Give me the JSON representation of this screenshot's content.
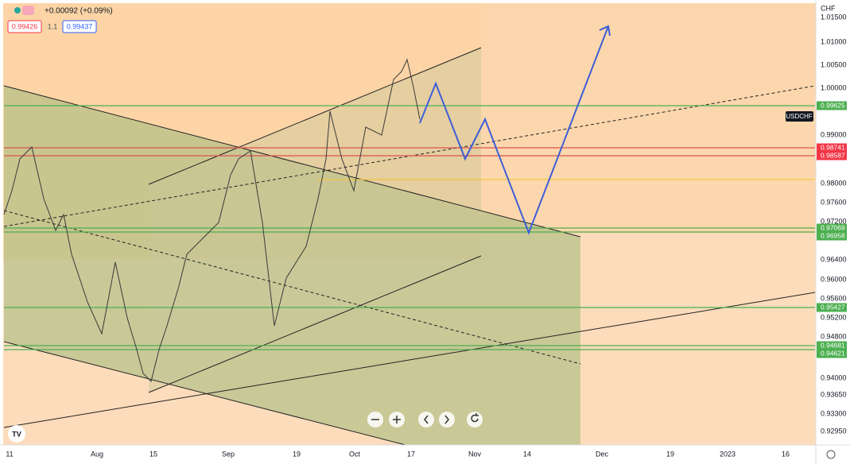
{
  "header": {
    "change": "+0.00092 (+0.09%)",
    "bid": "0.99426",
    "spread": "1.1",
    "ask": "0.99437"
  },
  "price_axis": {
    "currency": "CHF",
    "ticks": [
      "1.01500",
      "1.01000",
      "1.00500",
      "1.00000",
      "0.99000",
      "0.98000",
      "0.97600",
      "0.97200",
      "0.96400",
      "0.96000",
      "0.95600",
      "0.95200",
      "0.94800",
      "0.94000",
      "0.93650",
      "0.93300",
      "0.92950"
    ]
  },
  "symbol_tag": "USDCHF",
  "levels": [
    {
      "label": "0.99625",
      "color": "#4caf50"
    },
    {
      "label": "0.98741",
      "color": "#f23645"
    },
    {
      "label": "0.98587",
      "color": "#f23645"
    },
    {
      "label": "0.97069",
      "color": "#4caf50"
    },
    {
      "label": "0.96958",
      "color": "#4caf50"
    },
    {
      "label": "0.95427",
      "color": "#4caf50"
    },
    {
      "label": "0.94681",
      "color": "#4caf50"
    },
    {
      "label": "0.94621",
      "color": "#4caf50"
    }
  ],
  "date_axis": {
    "labels": [
      "11",
      "Aug",
      "15",
      "Sep",
      "19",
      "Oct",
      "17",
      "Nov",
      "14",
      "Dec",
      "19",
      "2023",
      "16"
    ]
  }
}
